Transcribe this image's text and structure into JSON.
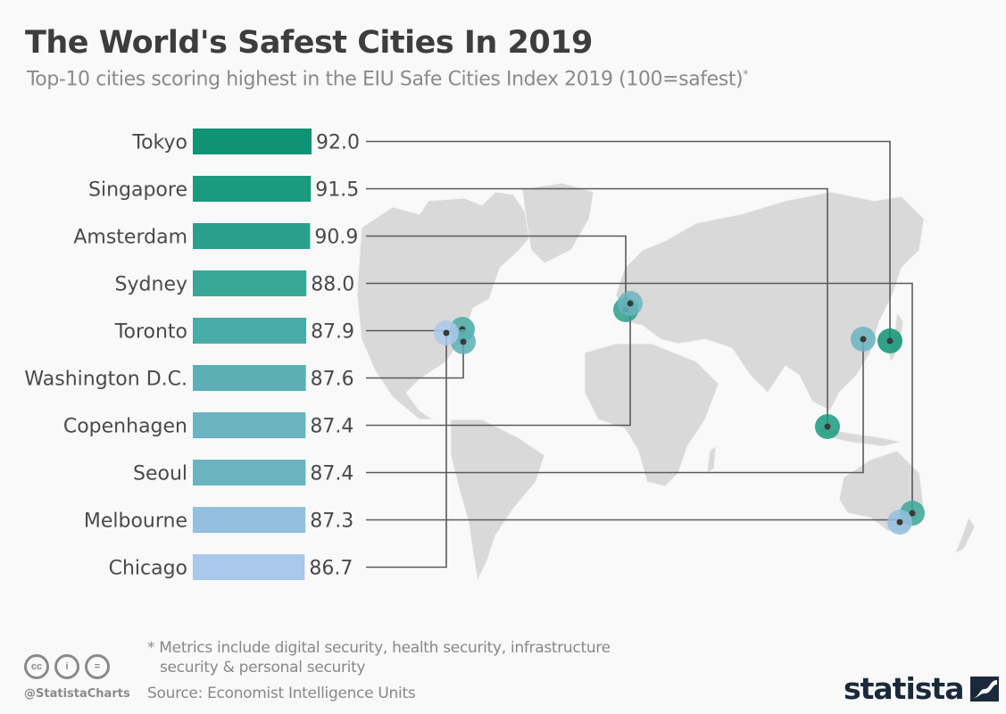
{
  "header": {
    "title": "The World's Safest Cities In 2019",
    "subtitle": "Top-10 cities scoring highest in the EIU Safe Cities Index 2019 (100=safest)",
    "subtitle_marker": "*"
  },
  "chart_data": {
    "type": "bar",
    "orientation": "horizontal",
    "title": "The World's Safest Cities In 2019",
    "subtitle": "Top-10 cities scoring highest in the EIU Safe Cities Index 2019 (100=safest)*",
    "xlabel": "",
    "ylabel": "",
    "categories": [
      "Tokyo",
      "Singapore",
      "Amsterdam",
      "Sydney",
      "Toronto",
      "Washington D.C.",
      "Copenhagen",
      "Seoul",
      "Melbourne",
      "Chicago"
    ],
    "values": [
      92.0,
      91.5,
      90.9,
      88.0,
      87.9,
      87.6,
      87.4,
      87.4,
      87.3,
      86.7
    ],
    "value_labels": [
      "92.0",
      "91.5",
      "90.9",
      "88.0",
      "87.9",
      "87.6",
      "87.4",
      "87.4",
      "87.3",
      "86.7"
    ],
    "colors": [
      "#0e9373",
      "#1a9a7e",
      "#2aa08a",
      "#3aa796",
      "#4aaaa5",
      "#5cafb4",
      "#6ab4c0",
      "#6ab4c0",
      "#92c0de",
      "#a9c8ea"
    ],
    "grid": false,
    "legend": "none",
    "map_background": "world map with city markers connected by leader lines"
  },
  "footer": {
    "note_line1": "* Metrics include digital security, health security, infrastructure",
    "note_line2": "security & personal security",
    "source": "Source: Economist Intelligence Units",
    "handle": "@StatistaCharts",
    "cc_icons": [
      "cc-icon",
      "attribution-icon",
      "no-derivatives-icon"
    ],
    "cc_labels": [
      "cc",
      "i",
      "="
    ],
    "logo": "statista"
  }
}
